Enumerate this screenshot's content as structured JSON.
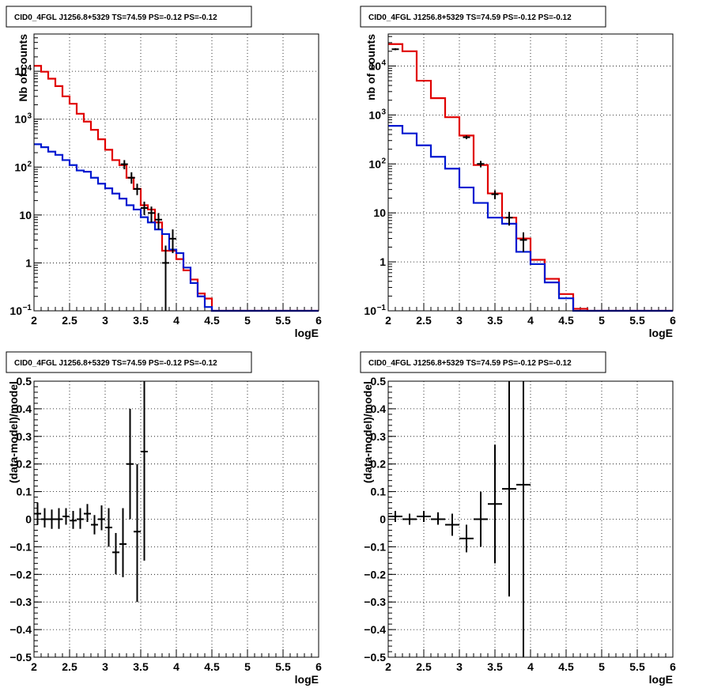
{
  "colors": {
    "data": "#000000",
    "total_model": "#e00000",
    "source_model": "#0018d0"
  },
  "chart_data": [
    {
      "type": "step-histogram",
      "title": "CID0_4FGL J1256.8+5329 TS=74.59 PS=-0.12 PS=-0.12",
      "xlabel": "logE",
      "ylabel": "Nb of counts",
      "xlim": [
        2,
        6
      ],
      "ylim": [
        0.1,
        60000
      ],
      "yscale": "log",
      "grid": true,
      "xticks": [
        "2",
        "2.5",
        "3",
        "3.5",
        "4",
        "4.5",
        "5",
        "5.5",
        "6"
      ],
      "yticks": [
        {
          "v": 0.1,
          "t": "10",
          "e": "−1"
        },
        {
          "v": 1,
          "t": "1",
          "e": ""
        },
        {
          "v": 10,
          "t": "10",
          "e": ""
        },
        {
          "v": 100,
          "t": "10",
          "e": "2"
        },
        {
          "v": 1000,
          "t": "10",
          "e": "3"
        },
        {
          "v": 10000,
          "t": "10",
          "e": "4"
        }
      ],
      "bin_edges": [
        2.0,
        2.1,
        2.2,
        2.3,
        2.4,
        2.5,
        2.6,
        2.7,
        2.8,
        2.9,
        3.0,
        3.1,
        3.2,
        3.3,
        3.4,
        3.5,
        3.6,
        3.7,
        3.8,
        3.9,
        4.0,
        4.1,
        4.2,
        4.3,
        4.4,
        4.5,
        4.6,
        4.7,
        4.8,
        4.9,
        5.0,
        5.1,
        5.2,
        5.3,
        5.4,
        5.5,
        5.6,
        5.7,
        5.8,
        5.9,
        6.0
      ],
      "series": [
        {
          "role": "total_model",
          "values": [
            13000,
            9800,
            7000,
            4900,
            3000,
            2100,
            1300,
            890,
            600,
            380,
            230,
            140,
            110,
            60,
            35,
            16,
            13,
            7,
            1.8,
            1.8,
            1.2,
            0.7,
            0.45,
            0.23,
            0.18,
            0.1,
            0.1,
            0.1,
            0.1,
            0.1,
            0.1,
            0.1,
            0.1,
            0.1,
            0.1,
            0.1,
            0.1,
            0.1,
            0.1,
            0.1
          ]
        },
        {
          "role": "source_model",
          "values": [
            300,
            260,
            210,
            180,
            140,
            110,
            85,
            80,
            60,
            45,
            36,
            28,
            22,
            16,
            13,
            9,
            7,
            5,
            4,
            1.9,
            1.6,
            0.8,
            0.38,
            0.2,
            0.12,
            0.1,
            0.1,
            0.1,
            0.1,
            0.1,
            0.1,
            0.1,
            0.1,
            0.1,
            0.1,
            0.1,
            0.1,
            0.1,
            0.1,
            0.1
          ]
        }
      ],
      "points": [
        {
          "x": 3.27,
          "y": 115,
          "lo": 90,
          "hi": 140
        },
        {
          "x": 3.37,
          "y": 60,
          "lo": 45,
          "hi": 78
        },
        {
          "x": 3.45,
          "y": 35,
          "lo": 26,
          "hi": 45
        },
        {
          "x": 3.55,
          "y": 14,
          "lo": 10,
          "hi": 19
        },
        {
          "x": 3.65,
          "y": 11,
          "lo": 7,
          "hi": 15
        },
        {
          "x": 3.75,
          "y": 8,
          "lo": 5,
          "hi": 11
        },
        {
          "x": 3.85,
          "y": 1,
          "lo": 0.1,
          "hi": 2.3
        },
        {
          "x": 3.95,
          "y": 3.2,
          "lo": 1.6,
          "hi": 5
        }
      ]
    },
    {
      "type": "step-histogram",
      "title": "CID0_4FGL J1256.8+5329 TS=74.59 PS=-0.12 PS=-0.12",
      "xlabel": "logE",
      "ylabel": "nb of counts",
      "xlim": [
        2,
        6
      ],
      "ylim": [
        0.1,
        45000
      ],
      "yscale": "log",
      "grid": true,
      "xticks": [
        "2",
        "2.5",
        "3",
        "3.5",
        "4",
        "4.5",
        "5",
        "5.5",
        "6"
      ],
      "yticks": [
        {
          "v": 0.1,
          "t": "10",
          "e": "−1"
        },
        {
          "v": 1,
          "t": "1",
          "e": ""
        },
        {
          "v": 10,
          "t": "10",
          "e": ""
        },
        {
          "v": 100,
          "t": "10",
          "e": "2"
        },
        {
          "v": 1000,
          "t": "10",
          "e": "3"
        },
        {
          "v": 10000,
          "t": "10",
          "e": "4"
        }
      ],
      "bin_edges": [
        2.0,
        2.2,
        2.4,
        2.6,
        2.8,
        3.0,
        3.2,
        3.4,
        3.6,
        3.8,
        4.0,
        4.2,
        4.4,
        4.6,
        4.8,
        5.0,
        5.2,
        5.4,
        5.6,
        5.8,
        6.0
      ],
      "series": [
        {
          "role": "total_model",
          "values": [
            28000,
            20000,
            5000,
            2200,
            900,
            380,
            95,
            25,
            8,
            3,
            1.1,
            0.45,
            0.22,
            0.11,
            0.1,
            0.1,
            0.1,
            0.1,
            0.1,
            0.1
          ]
        },
        {
          "role": "source_model",
          "values": [
            600,
            420,
            240,
            140,
            80,
            33,
            16,
            8,
            6,
            1.6,
            0.9,
            0.38,
            0.18,
            0.1,
            0.1,
            0.1,
            0.1,
            0.1,
            0.1,
            0.1
          ]
        }
      ],
      "points": [
        {
          "x": 2.1,
          "y": 22000,
          "lo": 21000,
          "hi": 23000
        },
        {
          "x": 3.1,
          "y": 350,
          "lo": 320,
          "hi": 380
        },
        {
          "x": 3.3,
          "y": 100,
          "lo": 85,
          "hi": 115
        },
        {
          "x": 3.5,
          "y": 24,
          "lo": 19,
          "hi": 29
        },
        {
          "x": 3.7,
          "y": 8,
          "lo": 5.5,
          "hi": 10.5
        },
        {
          "x": 3.9,
          "y": 2.8,
          "lo": 1.6,
          "hi": 4
        }
      ]
    },
    {
      "type": "scatter-errorbar",
      "title": "CID0_4FGL J1256.8+5329 TS=74.59 PS=-0.12 PS=-0.12",
      "xlabel": "logE",
      "ylabel": "(data-model)/model",
      "xlim": [
        2,
        6
      ],
      "ylim": [
        -0.5,
        0.5
      ],
      "grid": true,
      "xticks": [
        "2",
        "2.5",
        "3",
        "3.5",
        "4",
        "4.5",
        "5",
        "5.5",
        "6"
      ],
      "yticks": [
        "−0.5",
        "−0.4",
        "−0.3",
        "−0.2",
        "−0.1",
        "0",
        "0.1",
        "0.2",
        "0.3",
        "0.4",
        "0.5"
      ],
      "xerr": 0.05,
      "points": [
        {
          "x": 2.05,
          "y": 0.02,
          "lo": -0.02,
          "hi": 0.06
        },
        {
          "x": 2.15,
          "y": 0.0,
          "lo": -0.03,
          "hi": 0.04
        },
        {
          "x": 2.25,
          "y": 0.0,
          "lo": -0.035,
          "hi": 0.035
        },
        {
          "x": 2.35,
          "y": 0.0,
          "lo": -0.035,
          "hi": 0.04
        },
        {
          "x": 2.45,
          "y": 0.01,
          "lo": -0.02,
          "hi": 0.04
        },
        {
          "x": 2.55,
          "y": -0.005,
          "lo": -0.035,
          "hi": 0.03
        },
        {
          "x": 2.65,
          "y": 0.0,
          "lo": -0.035,
          "hi": 0.04
        },
        {
          "x": 2.75,
          "y": 0.02,
          "lo": -0.01,
          "hi": 0.055
        },
        {
          "x": 2.85,
          "y": -0.02,
          "lo": -0.055,
          "hi": 0.015
        },
        {
          "x": 2.95,
          "y": 0.0,
          "lo": -0.04,
          "hi": 0.05
        },
        {
          "x": 3.05,
          "y": -0.03,
          "lo": -0.1,
          "hi": 0.04
        },
        {
          "x": 3.15,
          "y": -0.12,
          "lo": -0.2,
          "hi": -0.05
        },
        {
          "x": 3.25,
          "y": -0.09,
          "lo": -0.21,
          "hi": 0.04
        },
        {
          "x": 3.35,
          "y": 0.2,
          "lo": 0.0,
          "hi": 0.4
        },
        {
          "x": 3.45,
          "y": -0.045,
          "lo": -0.3,
          "hi": 0.2
        },
        {
          "x": 3.55,
          "y": 0.245,
          "lo": -0.15,
          "hi": 0.5
        }
      ]
    },
    {
      "type": "scatter-errorbar",
      "title": "CID0_4FGL J1256.8+5329 TS=74.59 PS=-0.12 PS=-0.12",
      "xlabel": "logE",
      "ylabel": "(data-model)/model",
      "xlim": [
        2,
        6
      ],
      "ylim": [
        -0.5,
        0.5
      ],
      "grid": true,
      "xticks": [
        "2",
        "2.5",
        "3",
        "3.5",
        "4",
        "4.5",
        "5",
        "5.5",
        "6"
      ],
      "yticks": [
        "−0.5",
        "−0.4",
        "−0.3",
        "−0.2",
        "−0.1",
        "0",
        "0.1",
        "0.2",
        "0.3",
        "0.4",
        "0.5"
      ],
      "xerr": 0.1,
      "points": [
        {
          "x": 2.1,
          "y": 0.01,
          "lo": -0.01,
          "hi": 0.03
        },
        {
          "x": 2.3,
          "y": 0.0,
          "lo": -0.02,
          "hi": 0.02
        },
        {
          "x": 2.5,
          "y": 0.01,
          "lo": -0.01,
          "hi": 0.03
        },
        {
          "x": 2.7,
          "y": 0.0,
          "lo": -0.02,
          "hi": 0.025
        },
        {
          "x": 2.9,
          "y": -0.02,
          "lo": -0.06,
          "hi": 0.02
        },
        {
          "x": 3.1,
          "y": -0.07,
          "lo": -0.12,
          "hi": -0.02
        },
        {
          "x": 3.3,
          "y": 0.0,
          "lo": -0.1,
          "hi": 0.1
        },
        {
          "x": 3.5,
          "y": 0.055,
          "lo": -0.16,
          "hi": 0.27
        },
        {
          "x": 3.7,
          "y": 0.11,
          "lo": -0.28,
          "hi": 0.5
        },
        {
          "x": 3.9,
          "y": 0.125,
          "lo": -0.5,
          "hi": 0.5
        }
      ]
    }
  ]
}
